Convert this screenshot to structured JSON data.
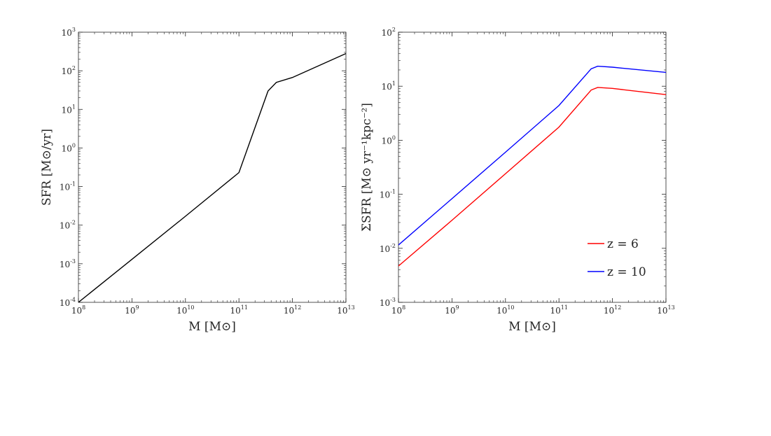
{
  "chart_data": [
    {
      "type": "line",
      "title": "",
      "x_scale": "log",
      "y_scale": "log",
      "xlim": [
        100000000.0,
        10000000000000.0
      ],
      "ylim": [
        0.0001,
        1000.0
      ],
      "x_ticks": [
        {
          "base": "10",
          "exp": "8"
        },
        {
          "base": "10",
          "exp": "9"
        },
        {
          "base": "10",
          "exp": "10"
        },
        {
          "base": "10",
          "exp": "11"
        },
        {
          "base": "10",
          "exp": "12"
        },
        {
          "base": "10",
          "exp": "13"
        }
      ],
      "y_ticks": [
        {
          "base": "10",
          "exp": "-4"
        },
        {
          "base": "10",
          "exp": "-3"
        },
        {
          "base": "10",
          "exp": "-2"
        },
        {
          "base": "10",
          "exp": "-1"
        },
        {
          "base": "10",
          "exp": "0"
        },
        {
          "base": "10",
          "exp": "1"
        },
        {
          "base": "10",
          "exp": "2"
        },
        {
          "base": "10",
          "exp": "3"
        }
      ],
      "xlabel": "M [M⊙]",
      "ylabel": "SFR [M⊙/yr]",
      "grid": false,
      "series": [
        {
          "name": "",
          "color": "#000000",
          "x": [
            100000000.0,
            1000000000.0,
            10000000000.0,
            100000000000.0,
            350000000000.0,
            500000000000.0,
            1000000000000.0,
            10000000000000.0
          ],
          "y": [
            0.0001,
            0.0013,
            0.017,
            0.23,
            30,
            50,
            67,
            280
          ]
        }
      ]
    },
    {
      "type": "line",
      "title": "",
      "x_scale": "log",
      "y_scale": "log",
      "xlim": [
        100000000.0,
        10000000000000.0
      ],
      "ylim": [
        0.001,
        100.0
      ],
      "x_ticks": [
        {
          "base": "10",
          "exp": "8"
        },
        {
          "base": "10",
          "exp": "9"
        },
        {
          "base": "10",
          "exp": "10"
        },
        {
          "base": "10",
          "exp": "11"
        },
        {
          "base": "10",
          "exp": "12"
        },
        {
          "base": "10",
          "exp": "13"
        }
      ],
      "y_ticks": [
        {
          "base": "10",
          "exp": "-3"
        },
        {
          "base": "10",
          "exp": "-2"
        },
        {
          "base": "10",
          "exp": "-1"
        },
        {
          "base": "10",
          "exp": "0"
        },
        {
          "base": "10",
          "exp": "1"
        },
        {
          "base": "10",
          "exp": "2"
        }
      ],
      "xlabel": "M [M⊙]",
      "ylabel": "ΣSFR [M⊙ yr⁻¹kpc⁻²]",
      "grid": false,
      "legend_position": "right",
      "series": [
        {
          "name": "z = 6",
          "color": "#ff0000",
          "x": [
            100000000.0,
            1000000000.0,
            10000000000.0,
            100000000000.0,
            400000000000.0,
            530000000000.0,
            1000000000000.0,
            10000000000000.0
          ],
          "y": [
            0.0047,
            0.033,
            0.24,
            1.75,
            8.5,
            9.5,
            9.1,
            7.0
          ]
        },
        {
          "name": "z = 10",
          "color": "#0000ff",
          "x": [
            100000000.0,
            1000000000.0,
            10000000000.0,
            100000000000.0,
            400000000000.0,
            530000000000.0,
            1000000000000.0,
            10000000000000.0
          ],
          "y": [
            0.0115,
            0.083,
            0.6,
            4.4,
            21,
            23.5,
            22.5,
            18
          ]
        }
      ]
    }
  ]
}
